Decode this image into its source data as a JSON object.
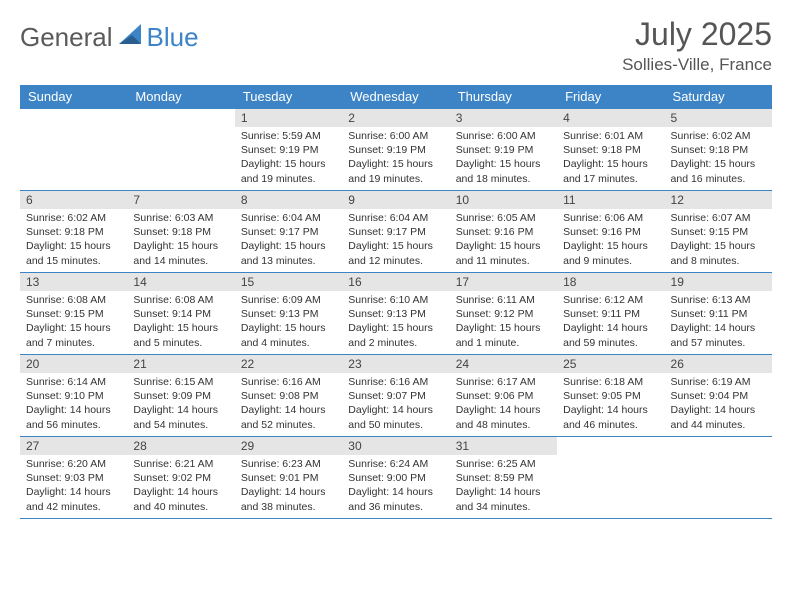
{
  "logo": {
    "general": "General",
    "blue": "Blue"
  },
  "title": "July 2025",
  "location": "Sollies-Ville, France",
  "colors": {
    "brand_blue": "#3d84c6",
    "header_text": "#ffffff",
    "daynum_bg": "#e5e5e5",
    "text": "#333333",
    "title_text": "#555555"
  },
  "weekdays": [
    "Sunday",
    "Monday",
    "Tuesday",
    "Wednesday",
    "Thursday",
    "Friday",
    "Saturday"
  ],
  "weeks": [
    [
      null,
      null,
      {
        "n": "1",
        "sr": "Sunrise: 5:59 AM",
        "ss": "Sunset: 9:19 PM",
        "dl": "Daylight: 15 hours and 19 minutes."
      },
      {
        "n": "2",
        "sr": "Sunrise: 6:00 AM",
        "ss": "Sunset: 9:19 PM",
        "dl": "Daylight: 15 hours and 19 minutes."
      },
      {
        "n": "3",
        "sr": "Sunrise: 6:00 AM",
        "ss": "Sunset: 9:19 PM",
        "dl": "Daylight: 15 hours and 18 minutes."
      },
      {
        "n": "4",
        "sr": "Sunrise: 6:01 AM",
        "ss": "Sunset: 9:18 PM",
        "dl": "Daylight: 15 hours and 17 minutes."
      },
      {
        "n": "5",
        "sr": "Sunrise: 6:02 AM",
        "ss": "Sunset: 9:18 PM",
        "dl": "Daylight: 15 hours and 16 minutes."
      }
    ],
    [
      {
        "n": "6",
        "sr": "Sunrise: 6:02 AM",
        "ss": "Sunset: 9:18 PM",
        "dl": "Daylight: 15 hours and 15 minutes."
      },
      {
        "n": "7",
        "sr": "Sunrise: 6:03 AM",
        "ss": "Sunset: 9:18 PM",
        "dl": "Daylight: 15 hours and 14 minutes."
      },
      {
        "n": "8",
        "sr": "Sunrise: 6:04 AM",
        "ss": "Sunset: 9:17 PM",
        "dl": "Daylight: 15 hours and 13 minutes."
      },
      {
        "n": "9",
        "sr": "Sunrise: 6:04 AM",
        "ss": "Sunset: 9:17 PM",
        "dl": "Daylight: 15 hours and 12 minutes."
      },
      {
        "n": "10",
        "sr": "Sunrise: 6:05 AM",
        "ss": "Sunset: 9:16 PM",
        "dl": "Daylight: 15 hours and 11 minutes."
      },
      {
        "n": "11",
        "sr": "Sunrise: 6:06 AM",
        "ss": "Sunset: 9:16 PM",
        "dl": "Daylight: 15 hours and 9 minutes."
      },
      {
        "n": "12",
        "sr": "Sunrise: 6:07 AM",
        "ss": "Sunset: 9:15 PM",
        "dl": "Daylight: 15 hours and 8 minutes."
      }
    ],
    [
      {
        "n": "13",
        "sr": "Sunrise: 6:08 AM",
        "ss": "Sunset: 9:15 PM",
        "dl": "Daylight: 15 hours and 7 minutes."
      },
      {
        "n": "14",
        "sr": "Sunrise: 6:08 AM",
        "ss": "Sunset: 9:14 PM",
        "dl": "Daylight: 15 hours and 5 minutes."
      },
      {
        "n": "15",
        "sr": "Sunrise: 6:09 AM",
        "ss": "Sunset: 9:13 PM",
        "dl": "Daylight: 15 hours and 4 minutes."
      },
      {
        "n": "16",
        "sr": "Sunrise: 6:10 AM",
        "ss": "Sunset: 9:13 PM",
        "dl": "Daylight: 15 hours and 2 minutes."
      },
      {
        "n": "17",
        "sr": "Sunrise: 6:11 AM",
        "ss": "Sunset: 9:12 PM",
        "dl": "Daylight: 15 hours and 1 minute."
      },
      {
        "n": "18",
        "sr": "Sunrise: 6:12 AM",
        "ss": "Sunset: 9:11 PM",
        "dl": "Daylight: 14 hours and 59 minutes."
      },
      {
        "n": "19",
        "sr": "Sunrise: 6:13 AM",
        "ss": "Sunset: 9:11 PM",
        "dl": "Daylight: 14 hours and 57 minutes."
      }
    ],
    [
      {
        "n": "20",
        "sr": "Sunrise: 6:14 AM",
        "ss": "Sunset: 9:10 PM",
        "dl": "Daylight: 14 hours and 56 minutes."
      },
      {
        "n": "21",
        "sr": "Sunrise: 6:15 AM",
        "ss": "Sunset: 9:09 PM",
        "dl": "Daylight: 14 hours and 54 minutes."
      },
      {
        "n": "22",
        "sr": "Sunrise: 6:16 AM",
        "ss": "Sunset: 9:08 PM",
        "dl": "Daylight: 14 hours and 52 minutes."
      },
      {
        "n": "23",
        "sr": "Sunrise: 6:16 AM",
        "ss": "Sunset: 9:07 PM",
        "dl": "Daylight: 14 hours and 50 minutes."
      },
      {
        "n": "24",
        "sr": "Sunrise: 6:17 AM",
        "ss": "Sunset: 9:06 PM",
        "dl": "Daylight: 14 hours and 48 minutes."
      },
      {
        "n": "25",
        "sr": "Sunrise: 6:18 AM",
        "ss": "Sunset: 9:05 PM",
        "dl": "Daylight: 14 hours and 46 minutes."
      },
      {
        "n": "26",
        "sr": "Sunrise: 6:19 AM",
        "ss": "Sunset: 9:04 PM",
        "dl": "Daylight: 14 hours and 44 minutes."
      }
    ],
    [
      {
        "n": "27",
        "sr": "Sunrise: 6:20 AM",
        "ss": "Sunset: 9:03 PM",
        "dl": "Daylight: 14 hours and 42 minutes."
      },
      {
        "n": "28",
        "sr": "Sunrise: 6:21 AM",
        "ss": "Sunset: 9:02 PM",
        "dl": "Daylight: 14 hours and 40 minutes."
      },
      {
        "n": "29",
        "sr": "Sunrise: 6:23 AM",
        "ss": "Sunset: 9:01 PM",
        "dl": "Daylight: 14 hours and 38 minutes."
      },
      {
        "n": "30",
        "sr": "Sunrise: 6:24 AM",
        "ss": "Sunset: 9:00 PM",
        "dl": "Daylight: 14 hours and 36 minutes."
      },
      {
        "n": "31",
        "sr": "Sunrise: 6:25 AM",
        "ss": "Sunset: 8:59 PM",
        "dl": "Daylight: 14 hours and 34 minutes."
      },
      null,
      null
    ]
  ]
}
